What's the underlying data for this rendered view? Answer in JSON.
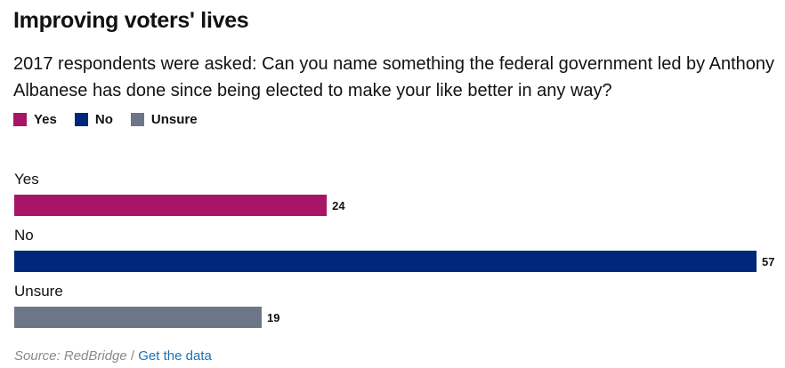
{
  "header": {
    "title": "Improving voters' lives",
    "subtitle": "2017 respondents were asked: Can you name something the federal government led by Anthony Albanese has done since being elected to make your like better in any way?"
  },
  "legend": {
    "items": [
      {
        "label": "Yes",
        "color": "#a81466"
      },
      {
        "label": "No",
        "color": "#00277a"
      },
      {
        "label": "Unsure",
        "color": "#6d7588"
      }
    ]
  },
  "chart_data": {
    "type": "bar",
    "orientation": "horizontal",
    "categories": [
      "Yes",
      "No",
      "Unsure"
    ],
    "values": [
      24,
      57,
      19
    ],
    "colors": [
      "#a81466",
      "#00277a",
      "#6d7588"
    ],
    "xlim": [
      0,
      57
    ],
    "grid": false,
    "legend_position": "top-left",
    "data_labels": true
  },
  "footer": {
    "source": "Source: RedBridge",
    "separator": "/",
    "link_label": "Get the data"
  }
}
